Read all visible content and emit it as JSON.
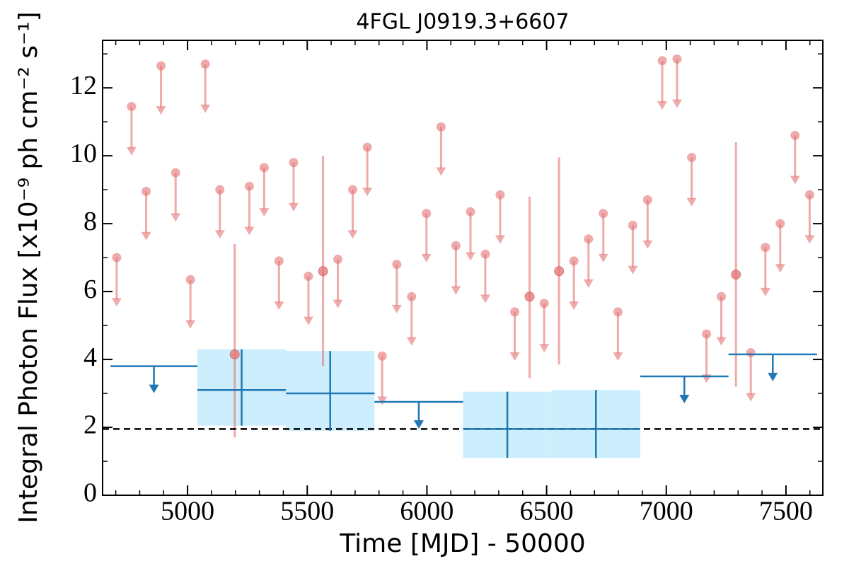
{
  "chart_data": {
    "type": "lightcurve",
    "title": "4FGL J0919.3+6607",
    "x_label": "Time [MJD] - 50000",
    "y_label": "Integral Photon Flux [x10⁻⁹ ph cm⁻² s⁻¹]",
    "xlim": [
      4645,
      7654
    ],
    "ylim": [
      0,
      13.4
    ],
    "xticks": [
      5000,
      5500,
      6000,
      6500,
      7000,
      7500
    ],
    "yticks": [
      0,
      2,
      4,
      6,
      8,
      10,
      12
    ],
    "xminorticks": [
      4700,
      4800,
      4900,
      5100,
      5200,
      5300,
      5400,
      5600,
      5700,
      5800,
      5900,
      6100,
      6200,
      6300,
      6400,
      6600,
      6700,
      6800,
      6900,
      7100,
      7200,
      7300,
      7400,
      7600
    ],
    "yminorticks": [
      1,
      3,
      5,
      7,
      9,
      11,
      13
    ],
    "reference": 1.95,
    "short_bins": {
      "color": "#e57373",
      "x": [
        4704,
        4766,
        4827,
        4889,
        4950,
        5012,
        5074,
        5135,
        5197,
        5258,
        5320,
        5382,
        5443,
        5505,
        5566,
        5628,
        5690,
        5751,
        5813,
        5874,
        5936,
        5998,
        6059,
        6121,
        6182,
        6244,
        6306,
        6367,
        6429,
        6490,
        6552,
        6614,
        6675,
        6737,
        6798,
        6860,
        6922,
        6983,
        7045,
        7106,
        7168,
        7230,
        7291,
        7353,
        7414,
        7476,
        7538,
        7599
      ],
      "values": [
        7.0,
        11.45,
        8.95,
        12.65,
        9.5,
        6.35,
        12.7,
        9.0,
        4.15,
        9.1,
        9.65,
        6.9,
        9.8,
        6.45,
        6.6,
        6.95,
        9.0,
        10.25,
        4.1,
        6.8,
        5.85,
        8.3,
        10.85,
        7.35,
        8.35,
        7.1,
        8.85,
        5.4,
        5.85,
        5.65,
        6.6,
        6.9,
        7.55,
        8.3,
        5.4,
        7.95,
        8.7,
        12.8,
        12.85,
        9.95,
        4.75,
        5.85,
        6.5,
        4.2,
        7.3,
        8.0,
        10.6,
        8.85
      ],
      "upper_limit": [
        true,
        true,
        true,
        true,
        true,
        true,
        true,
        true,
        false,
        true,
        true,
        true,
        true,
        true,
        false,
        true,
        true,
        true,
        true,
        true,
        true,
        true,
        true,
        true,
        true,
        true,
        true,
        true,
        false,
        true,
        false,
        true,
        true,
        true,
        true,
        true,
        true,
        true,
        true,
        true,
        true,
        true,
        false,
        true,
        true,
        true,
        true,
        true
      ],
      "err_low": [
        null,
        null,
        null,
        null,
        null,
        null,
        null,
        null,
        1.7,
        null,
        null,
        null,
        null,
        null,
        3.8,
        null,
        null,
        null,
        null,
        null,
        null,
        null,
        null,
        null,
        null,
        null,
        null,
        null,
        3.45,
        null,
        3.85,
        null,
        null,
        null,
        null,
        null,
        null,
        null,
        null,
        null,
        null,
        null,
        3.2,
        null,
        null,
        null,
        null,
        null
      ],
      "err_high": [
        null,
        null,
        null,
        null,
        null,
        null,
        null,
        null,
        7.4,
        null,
        null,
        null,
        null,
        null,
        10.0,
        null,
        null,
        null,
        null,
        null,
        null,
        null,
        null,
        null,
        null,
        null,
        null,
        null,
        8.8,
        null,
        9.95,
        null,
        null,
        null,
        null,
        null,
        null,
        null,
        null,
        null,
        null,
        null,
        10.4,
        null,
        null,
        null,
        null,
        null
      ]
    },
    "long_bins": {
      "color": "#1f77b4",
      "band_color": "#cdeefc",
      "bins": [
        4678,
        5041,
        5411,
        5781,
        6151,
        6521,
        6891,
        7260,
        7630
      ],
      "values": [
        3.8,
        3.1,
        3.0,
        2.75,
        1.95,
        1.95,
        3.5,
        4.15
      ],
      "upper_limit": [
        true,
        false,
        false,
        true,
        false,
        false,
        true,
        true
      ],
      "err_low": [
        null,
        2.05,
        1.9,
        null,
        1.1,
        1.1,
        null,
        null
      ],
      "err_high": [
        null,
        4.3,
        4.25,
        null,
        3.05,
        3.1,
        null,
        null
      ]
    }
  }
}
